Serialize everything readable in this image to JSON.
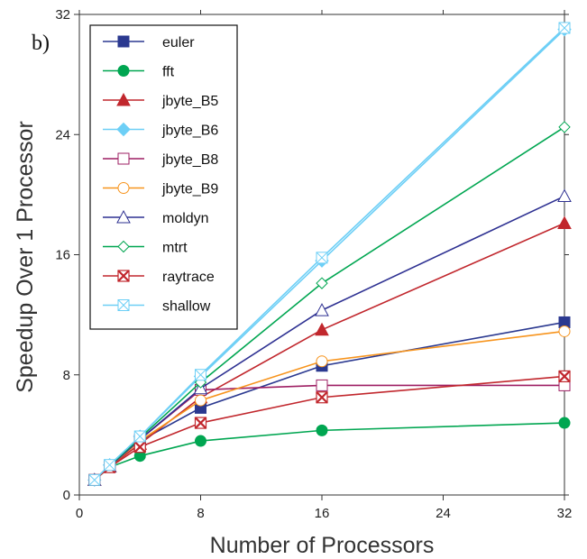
{
  "chart_data": {
    "type": "line",
    "panel_label": "b)",
    "xlabel": "Number of Processors",
    "ylabel": "Speedup Over 1 Processor",
    "xlim": [
      0,
      32
    ],
    "ylim": [
      0,
      32
    ],
    "xticks": [
      0,
      8,
      16,
      24,
      32
    ],
    "yticks": [
      0,
      8,
      16,
      24,
      32
    ],
    "grid": false,
    "legend_position": "top-left",
    "x": [
      1,
      2,
      4,
      8,
      16,
      32
    ],
    "series": [
      {
        "name": "euler",
        "color": "#2b3990",
        "marker": "square-filled",
        "values": [
          1,
          1.9,
          3.6,
          5.8,
          8.6,
          11.5
        ]
      },
      {
        "name": "fft",
        "color": "#00a651",
        "marker": "circle-filled",
        "values": [
          1,
          1.85,
          2.6,
          3.6,
          4.3,
          4.8
        ]
      },
      {
        "name": "jbyte_B5",
        "color": "#c1272d",
        "marker": "triangle-filled",
        "values": [
          1,
          1.9,
          3.4,
          6.5,
          11,
          18.1
        ]
      },
      {
        "name": "jbyte_B6",
        "color": "#6dcff6",
        "marker": "diamond-filled",
        "values": [
          1,
          2,
          3.9,
          7.9,
          15.6,
          31
        ]
      },
      {
        "name": "jbyte_B8",
        "color": "#9e1f63",
        "marker": "square-open",
        "values": [
          1,
          1.9,
          3.7,
          7,
          7.3,
          7.3
        ]
      },
      {
        "name": "jbyte_B9",
        "color": "#f7941d",
        "marker": "circle-open",
        "values": [
          1,
          1.9,
          3.6,
          6.3,
          8.9,
          10.9
        ]
      },
      {
        "name": "moldyn",
        "color": "#2e3192",
        "marker": "triangle-open",
        "values": [
          1,
          1.9,
          3.7,
          7.1,
          12.3,
          19.9
        ]
      },
      {
        "name": "mtrt",
        "color": "#00a651",
        "marker": "diamond-open",
        "values": [
          1,
          1.95,
          3.8,
          7.5,
          14.1,
          24.5
        ]
      },
      {
        "name": "raytrace",
        "color": "#c1272d",
        "marker": "x-square",
        "values": [
          1,
          1.85,
          3.2,
          4.8,
          6.5,
          7.9
        ]
      },
      {
        "name": "shallow",
        "color": "#6dcff6",
        "marker": "x-square-light",
        "values": [
          1,
          2,
          3.9,
          8,
          15.8,
          31.1
        ]
      }
    ]
  }
}
